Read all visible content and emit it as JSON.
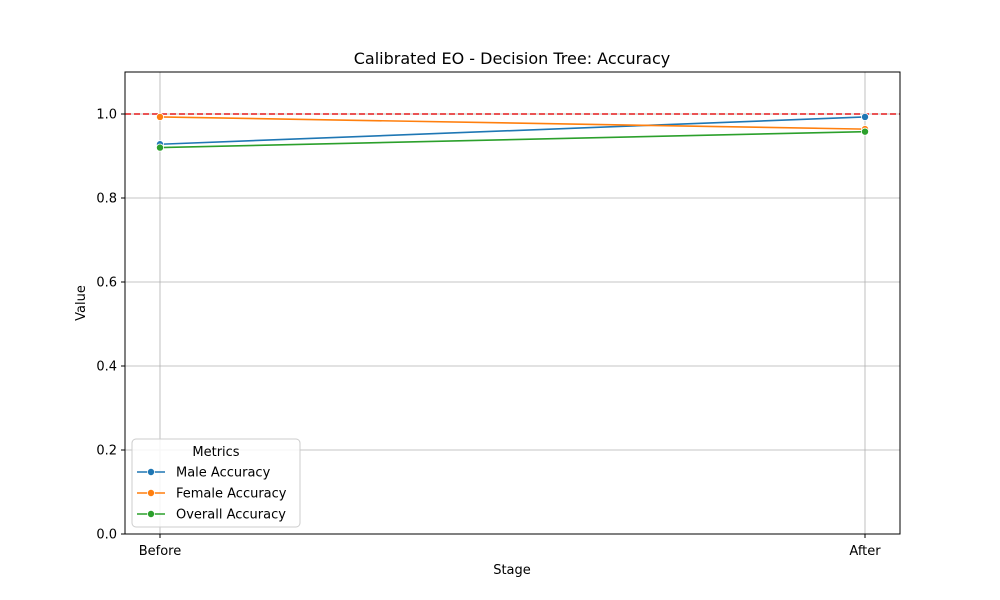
{
  "chart_data": {
    "type": "line",
    "title": "Calibrated EO - Decision Tree: Accuracy",
    "xlabel": "Stage",
    "ylabel": "Value",
    "categories": [
      "Before",
      "After"
    ],
    "ylim": [
      0,
      1.1
    ],
    "yticks": [
      "0.0",
      "0.2",
      "0.4",
      "0.6",
      "0.8",
      "1.0"
    ],
    "grid": true,
    "reference_line": {
      "y": 1.0,
      "color": "#e31a1c",
      "style": "dashed"
    },
    "legend": {
      "title": "Metrics",
      "placement": "lower-left"
    },
    "series": [
      {
        "name": "Male Accuracy",
        "values": [
          0.928,
          0.993
        ],
        "color": "#1f77b4"
      },
      {
        "name": "Female Accuracy",
        "values": [
          0.993,
          0.964
        ],
        "color": "#ff7f0e"
      },
      {
        "name": "Overall Accuracy",
        "values": [
          0.92,
          0.958
        ],
        "color": "#2ca02c"
      }
    ]
  }
}
